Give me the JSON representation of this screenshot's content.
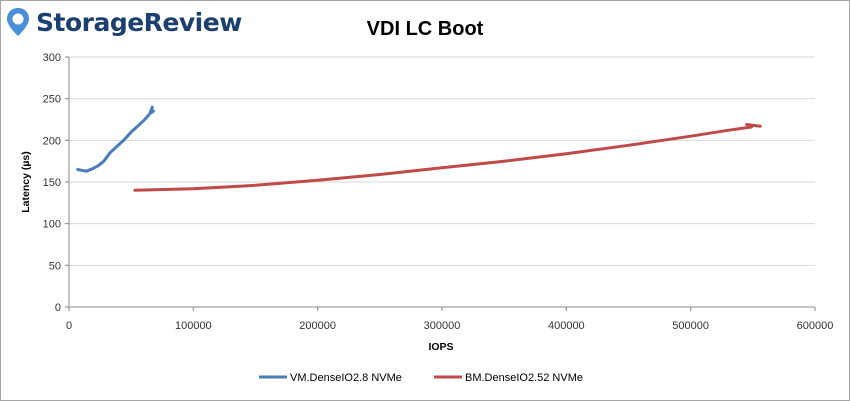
{
  "brand": {
    "logo_text": "StorageReview",
    "logo_icon": "location-pin-icon",
    "logo_color": "#1b3f6e",
    "icon_color": "#4a90d9"
  },
  "chart_data": {
    "type": "line",
    "title": "VDI LC Boot",
    "xlabel": "IOPS",
    "ylabel": "Latency (µs)",
    "xlim": [
      0,
      600000
    ],
    "ylim": [
      0,
      300
    ],
    "xticks": [
      0,
      100000,
      200000,
      300000,
      400000,
      500000,
      600000
    ],
    "yticks": [
      0,
      50,
      100,
      150,
      200,
      250,
      300
    ],
    "grid": true,
    "legend_position": "bottom",
    "series": [
      {
        "name": "VM.DenseIO2.8 NVMe",
        "color": "#4a7ebb",
        "x": [
          7000,
          10000,
          14000,
          19000,
          24000,
          28000,
          33000,
          38000,
          44000,
          50000,
          56000,
          61000,
          65000,
          67000,
          66000,
          68000
        ],
        "y": [
          165,
          164,
          163,
          166,
          170,
          175,
          185,
          192,
          200,
          210,
          218,
          225,
          232,
          240,
          233,
          235
        ]
      },
      {
        "name": "BM.DenseIO2.52 NVMe",
        "color": "#be4b48",
        "x": [
          53000,
          100000,
          150000,
          200000,
          250000,
          300000,
          350000,
          400000,
          450000,
          500000,
          530000,
          549000,
          545000,
          556000
        ],
        "y": [
          140,
          142,
          146,
          152,
          159,
          167,
          175,
          184,
          194,
          205,
          212,
          216,
          219,
          217
        ]
      }
    ]
  }
}
